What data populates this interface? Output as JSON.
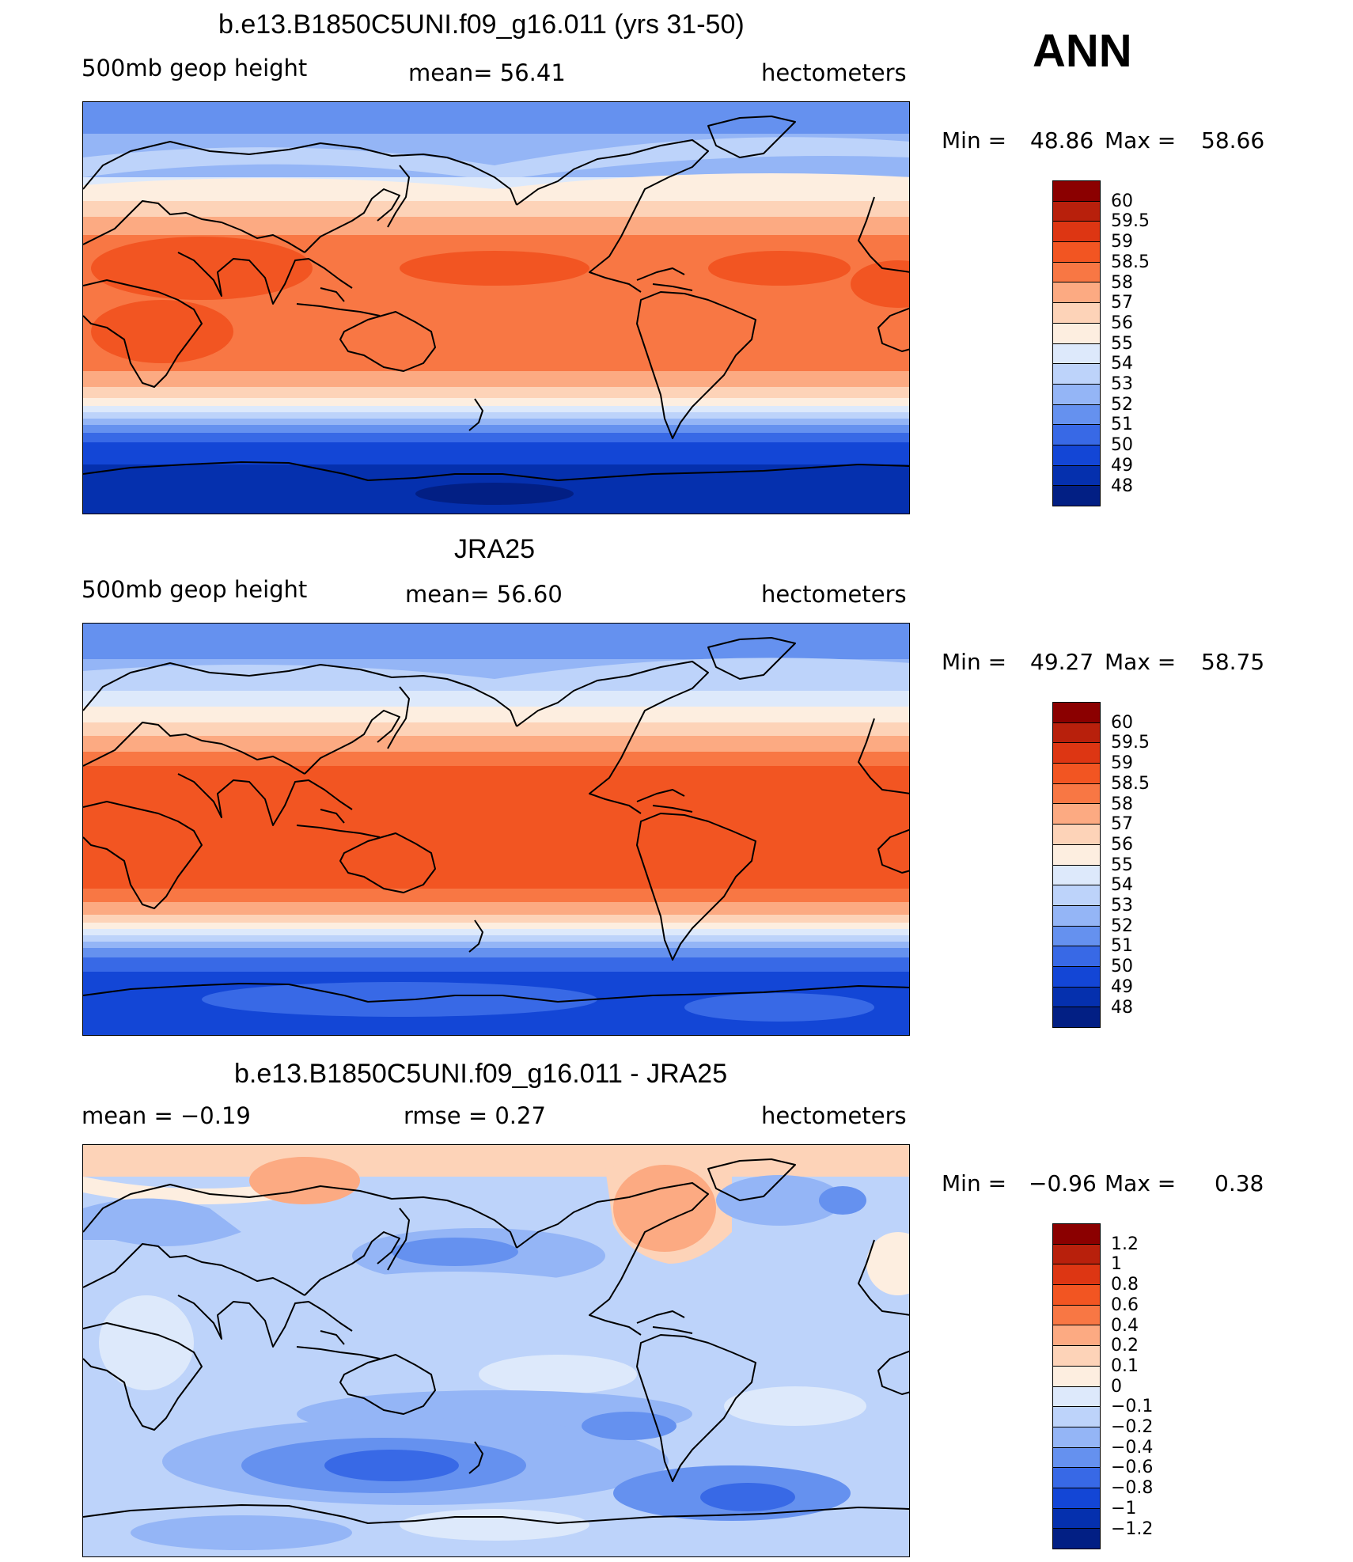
{
  "season": "ANN",
  "panels": [
    {
      "id": "model",
      "title": "b.e13.B1850C5UNI.f09_g16.011 (yrs 31-50)",
      "left": "500mb  geop  height",
      "mid": "mean=   56.41",
      "right": "hectometers",
      "min_label": "Min  =",
      "min_value": "48.86",
      "max_label": "Max  =",
      "max_value": "58.66",
      "colorbar": [
        "60",
        "59.5",
        "59",
        "58.5",
        "58",
        "57",
        "56",
        "55",
        "54",
        "53",
        "52",
        "51",
        "50",
        "49",
        "48"
      ],
      "colors": [
        "#8b0000",
        "#b8200c",
        "#dd3613",
        "#f25522",
        "#f87744",
        "#fcaa82",
        "#fdd3b8",
        "#fdeee0",
        "#dde9fb",
        "#bdd3fa",
        "#94b5f6",
        "#6591ef",
        "#3869e6",
        "#1346d6",
        "#0530ae",
        "#021f84"
      ]
    },
    {
      "id": "obs",
      "title": "JRA25",
      "left": "500mb  geop  height",
      "mid": "mean=   56.60",
      "right": "hectometers",
      "min_label": "Min  =",
      "min_value": "49.27",
      "max_label": "Max  =",
      "max_value": "58.75",
      "colorbar": [
        "60",
        "59.5",
        "59",
        "58.5",
        "58",
        "57",
        "56",
        "55",
        "54",
        "53",
        "52",
        "51",
        "50",
        "49",
        "48"
      ],
      "colors": [
        "#8b0000",
        "#b8200c",
        "#dd3613",
        "#f25522",
        "#f87744",
        "#fcaa82",
        "#fdd3b8",
        "#fdeee0",
        "#dde9fb",
        "#bdd3fa",
        "#94b5f6",
        "#6591ef",
        "#3869e6",
        "#1346d6",
        "#0530ae",
        "#021f84"
      ]
    },
    {
      "id": "diff",
      "title": "b.e13.B1850C5UNI.f09_g16.011 - JRA25",
      "left": "mean  =    −0.19",
      "mid": "rmse  =     0.27",
      "right": "hectometers",
      "min_label": "Min  =",
      "min_value": "−0.96",
      "max_label": "Max  =",
      "max_value": "0.38",
      "colorbar": [
        "1.2",
        "1",
        "0.8",
        "0.6",
        "0.4",
        "0.2",
        "0.1",
        "0",
        "−0.1",
        "−0.2",
        "−0.4",
        "−0.6",
        "−0.8",
        "−1",
        "−1.2"
      ],
      "colors": [
        "#8b0000",
        "#b8200c",
        "#dd3613",
        "#f25522",
        "#f87744",
        "#fcaa82",
        "#fdd3b8",
        "#fdeee0",
        "#dde9fb",
        "#bdd3fa",
        "#94b5f6",
        "#6591ef",
        "#3869e6",
        "#1346d6",
        "#0530ae",
        "#021f84"
      ]
    }
  ]
}
